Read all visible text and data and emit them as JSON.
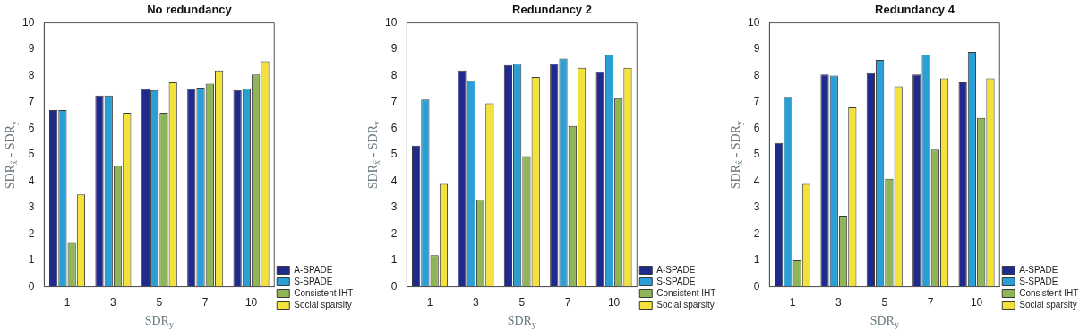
{
  "chart_data": [
    {
      "type": "bar",
      "title": "No redundancy",
      "xlabel": "SDR$_{y}$",
      "ylabel": "SDR$_{x̂}$ - SDR$_{y}$",
      "categories": [
        "1",
        "3",
        "5",
        "7",
        "10"
      ],
      "ylim": [
        0,
        10
      ],
      "yticks": [
        0,
        1,
        2,
        3,
        4,
        5,
        6,
        7,
        8,
        9,
        10
      ],
      "grid": false,
      "legend": "bottom right",
      "series": [
        {
          "name": "A-SPADE",
          "color": "#1f2a8c",
          "values": [
            6.7,
            7.25,
            7.5,
            7.5,
            7.45
          ]
        },
        {
          "name": "S-SPADE",
          "color": "#2a9fd6",
          "values": [
            6.7,
            7.25,
            7.45,
            7.55,
            7.5
          ]
        },
        {
          "name": "Consistent IHT",
          "color": "#8fb558",
          "values": [
            1.7,
            4.6,
            6.6,
            7.7,
            8.05
          ]
        },
        {
          "name": "Social sparsity",
          "color": "#f2e23a",
          "values": [
            3.5,
            6.6,
            7.75,
            8.2,
            8.55
          ]
        }
      ]
    },
    {
      "type": "bar",
      "title": "Redundancy 2",
      "xlabel": "SDR$_{y}$",
      "ylabel": "SDR$_{x̂}$ - SDR$_{y}$",
      "categories": [
        "1",
        "3",
        "5",
        "7",
        "10"
      ],
      "ylim": [
        0,
        10
      ],
      "yticks": [
        0,
        1,
        2,
        3,
        4,
        5,
        6,
        7,
        8,
        9,
        10
      ],
      "grid": false,
      "legend": "bottom right",
      "series": [
        {
          "name": "A-SPADE",
          "color": "#1f2a8c",
          "values": [
            5.35,
            8.2,
            8.4,
            8.45,
            8.15
          ]
        },
        {
          "name": "S-SPADE",
          "color": "#2a9fd6",
          "values": [
            7.1,
            7.8,
            8.45,
            8.65,
            8.8
          ]
        },
        {
          "name": "Consistent IHT",
          "color": "#8fb558",
          "values": [
            1.2,
            3.3,
            4.95,
            6.1,
            7.15
          ]
        },
        {
          "name": "Social sparsity",
          "color": "#f2e23a",
          "values": [
            3.9,
            6.95,
            7.95,
            8.3,
            8.3
          ]
        }
      ]
    },
    {
      "type": "bar",
      "title": "Redundancy 4",
      "xlabel": "SDR$_{y}$",
      "ylabel": "SDR$_{x̂}$ - SDR$_{y}$",
      "categories": [
        "1",
        "3",
        "5",
        "7",
        "10"
      ],
      "ylim": [
        0,
        10
      ],
      "yticks": [
        0,
        1,
        2,
        3,
        4,
        5,
        6,
        7,
        8,
        9,
        10
      ],
      "grid": false,
      "legend": "bottom right",
      "series": [
        {
          "name": "A-SPADE",
          "color": "#1f2a8c",
          "values": [
            5.45,
            8.05,
            8.1,
            8.05,
            7.75
          ]
        },
        {
          "name": "S-SPADE",
          "color": "#2a9fd6",
          "values": [
            7.2,
            8.0,
            8.6,
            8.8,
            8.9
          ]
        },
        {
          "name": "Consistent IHT",
          "color": "#8fb558",
          "values": [
            1.0,
            2.7,
            4.1,
            5.2,
            6.4
          ]
        },
        {
          "name": "Social sparsity",
          "color": "#f2e23a",
          "values": [
            3.9,
            6.8,
            7.6,
            7.9,
            7.9
          ]
        }
      ]
    }
  ]
}
